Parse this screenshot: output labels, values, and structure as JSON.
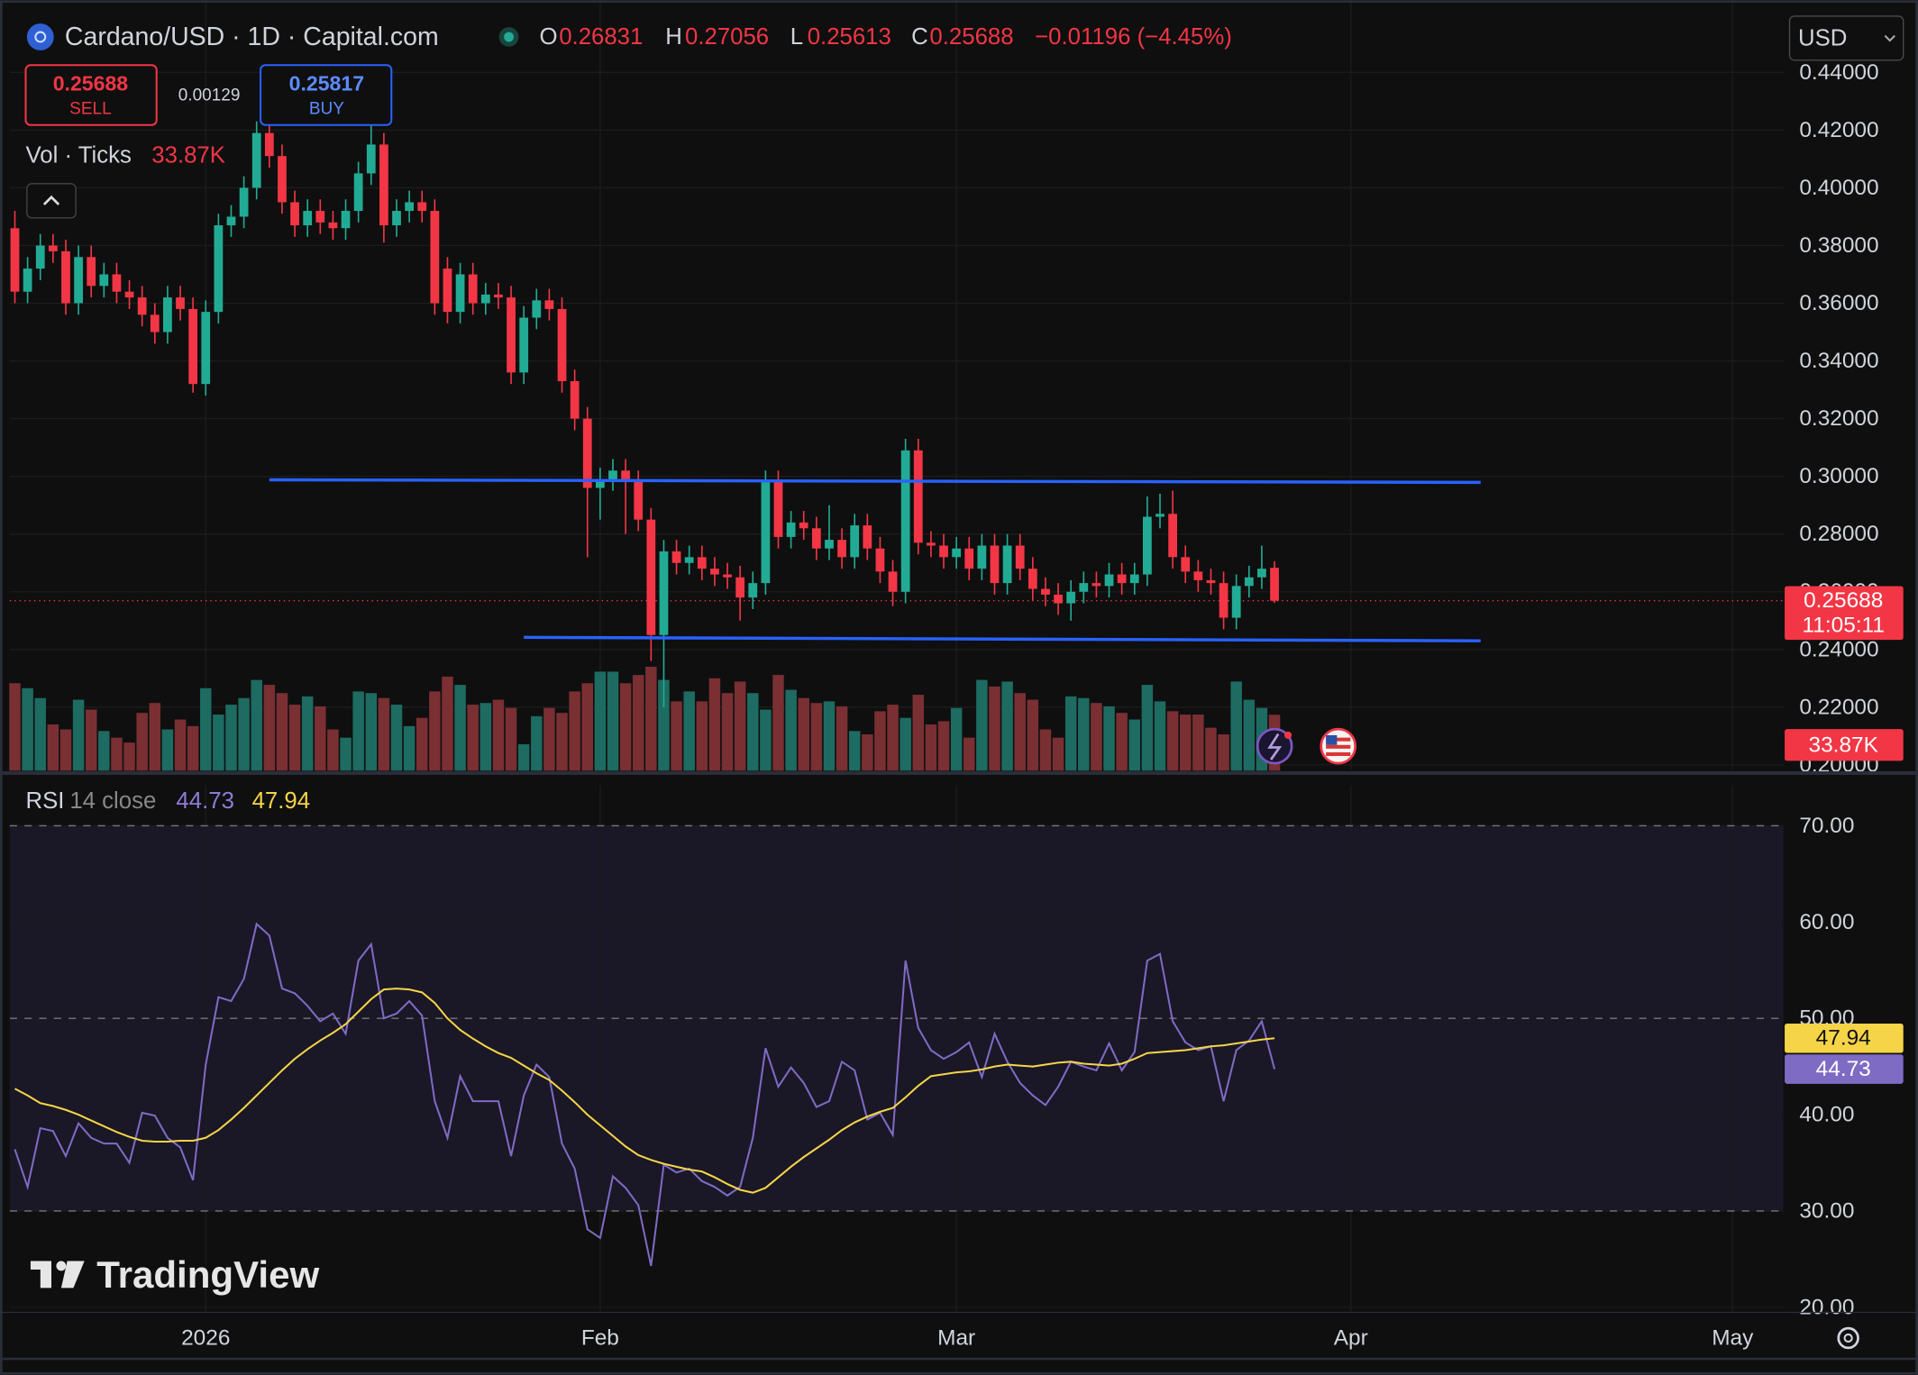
{
  "header": {
    "symbol": "Cardano/USD · 1D · Capital.com",
    "o_key": "O",
    "h_key": "H",
    "l_key": "L",
    "c_key": "C",
    "change": "−0.01196 (−4.45%)",
    "currency": "USD"
  },
  "trade": {
    "sell": "SELL",
    "spread": "0.00129",
    "buy_price": "0.25817",
    "buy": "BUY"
  },
  "branding": "TradingView",
  "chart_data": [
    {
      "type": "candlestick",
      "up_color": "#22ab94",
      "down_color": "#f23645",
      "grid": true,
      "countdown": "11:05:11",
      "x": [
        0,
        1,
        2,
        3,
        4,
        5,
        6,
        7,
        8,
        9,
        10,
        11,
        12,
        13,
        14,
        15,
        16,
        17,
        18,
        19,
        20,
        21,
        22,
        23,
        24,
        25,
        26,
        27,
        28,
        29,
        30,
        31,
        32,
        33,
        34,
        35,
        36,
        37,
        38,
        39,
        40,
        41,
        42,
        43,
        44,
        45,
        46,
        47,
        48,
        49,
        50,
        51,
        52,
        53,
        54,
        55,
        56,
        57,
        58,
        59,
        60,
        61,
        62,
        63,
        64,
        65,
        66,
        67,
        68,
        69,
        70,
        71,
        72,
        73,
        74,
        75,
        76,
        77,
        78,
        79,
        80,
        81,
        82,
        83,
        84,
        85,
        86,
        87,
        88,
        89,
        90,
        91,
        92,
        93,
        94,
        95,
        96,
        97,
        98,
        99
      ],
      "open": [
        0.386,
        0.364,
        0.372,
        0.38,
        0.378,
        0.36,
        0.376,
        0.366,
        0.37,
        0.364,
        0.362,
        0.356,
        0.35,
        0.362,
        0.358,
        0.332,
        0.357,
        0.387,
        0.39,
        0.4,
        0.419,
        0.411,
        0.395,
        0.387,
        0.392,
        0.388,
        0.386,
        0.392,
        0.405,
        0.415,
        0.387,
        0.392,
        0.395,
        0.392,
        0.372,
        0.357,
        0.37,
        0.36,
        0.363,
        0.362,
        0.336,
        0.355,
        0.361,
        0.358,
        0.333,
        0.32,
        0.296,
        0.299,
        0.302,
        0.298,
        0.285,
        0.245,
        0.274,
        0.27,
        0.272,
        0.268,
        0.266,
        0.265,
        0.258,
        0.263,
        0.298,
        0.279,
        0.284,
        0.282,
        0.275,
        0.278,
        0.272,
        0.283,
        0.275,
        0.267,
        0.26,
        0.309,
        0.277,
        0.276,
        0.272,
        0.275,
        0.268,
        0.276,
        0.263,
        0.276,
        0.268,
        0.261,
        0.259,
        0.256,
        0.26,
        0.263,
        0.262,
        0.266,
        0.263,
        0.266,
        0.286,
        0.287,
        0.272,
        0.267,
        0.264,
        0.263,
        0.251,
        0.262,
        0.265,
        0.26831
      ],
      "high": [
        0.392,
        0.376,
        0.384,
        0.384,
        0.382,
        0.38,
        0.38,
        0.374,
        0.374,
        0.368,
        0.366,
        0.36,
        0.366,
        0.366,
        0.362,
        0.361,
        0.391,
        0.394,
        0.404,
        0.423,
        0.423,
        0.415,
        0.399,
        0.396,
        0.396,
        0.392,
        0.396,
        0.409,
        0.423,
        0.419,
        0.396,
        0.399,
        0.399,
        0.396,
        0.376,
        0.374,
        0.374,
        0.367,
        0.367,
        0.366,
        0.359,
        0.365,
        0.365,
        0.362,
        0.337,
        0.324,
        0.303,
        0.306,
        0.306,
        0.302,
        0.289,
        0.278,
        0.278,
        0.276,
        0.276,
        0.272,
        0.27,
        0.269,
        0.267,
        0.302,
        0.302,
        0.288,
        0.288,
        0.286,
        0.29,
        0.282,
        0.287,
        0.287,
        0.279,
        0.271,
        0.313,
        0.313,
        0.281,
        0.28,
        0.279,
        0.279,
        0.28,
        0.28,
        0.28,
        0.28,
        0.272,
        0.265,
        0.263,
        0.264,
        0.267,
        0.267,
        0.27,
        0.27,
        0.27,
        0.293,
        0.294,
        0.295,
        0.276,
        0.271,
        0.268,
        0.267,
        0.266,
        0.269,
        0.276,
        0.27056
      ],
      "low": [
        0.36,
        0.36,
        0.368,
        0.374,
        0.356,
        0.356,
        0.362,
        0.362,
        0.36,
        0.358,
        0.352,
        0.346,
        0.346,
        0.354,
        0.329,
        0.328,
        0.353,
        0.383,
        0.386,
        0.396,
        0.407,
        0.391,
        0.383,
        0.383,
        0.384,
        0.382,
        0.382,
        0.388,
        0.401,
        0.381,
        0.383,
        0.388,
        0.388,
        0.356,
        0.353,
        0.353,
        0.356,
        0.356,
        0.358,
        0.332,
        0.332,
        0.351,
        0.354,
        0.329,
        0.316,
        0.272,
        0.285,
        0.295,
        0.28,
        0.281,
        0.236,
        0.22,
        0.266,
        0.266,
        0.264,
        0.262,
        0.261,
        0.25,
        0.254,
        0.259,
        0.275,
        0.275,
        0.278,
        0.271,
        0.271,
        0.268,
        0.268,
        0.271,
        0.263,
        0.255,
        0.256,
        0.273,
        0.272,
        0.268,
        0.268,
        0.264,
        0.264,
        0.259,
        0.259,
        0.264,
        0.257,
        0.255,
        0.252,
        0.25,
        0.256,
        0.258,
        0.258,
        0.259,
        0.259,
        0.262,
        0.282,
        0.268,
        0.263,
        0.26,
        0.259,
        0.247,
        0.247,
        0.258,
        0.261,
        0.25613
      ],
      "close": [
        0.364,
        0.372,
        0.38,
        0.378,
        0.36,
        0.376,
        0.366,
        0.37,
        0.364,
        0.362,
        0.356,
        0.35,
        0.362,
        0.358,
        0.332,
        0.357,
        0.387,
        0.39,
        0.4,
        0.419,
        0.411,
        0.395,
        0.387,
        0.392,
        0.388,
        0.386,
        0.392,
        0.405,
        0.415,
        0.387,
        0.392,
        0.395,
        0.392,
        0.36,
        0.357,
        0.37,
        0.36,
        0.363,
        0.362,
        0.336,
        0.355,
        0.361,
        0.358,
        0.333,
        0.32,
        0.296,
        0.299,
        0.302,
        0.298,
        0.285,
        0.245,
        0.274,
        0.27,
        0.272,
        0.268,
        0.266,
        0.265,
        0.258,
        0.263,
        0.298,
        0.279,
        0.284,
        0.282,
        0.275,
        0.278,
        0.272,
        0.283,
        0.275,
        0.267,
        0.26,
        0.309,
        0.277,
        0.276,
        0.272,
        0.275,
        0.268,
        0.276,
        0.263,
        0.276,
        0.268,
        0.261,
        0.259,
        0.256,
        0.26,
        0.263,
        0.262,
        0.266,
        0.263,
        0.266,
        0.286,
        0.287,
        0.272,
        0.267,
        0.264,
        0.263,
        0.251,
        0.262,
        0.265,
        0.268,
        0.25688
      ],
      "xlim": [
        -0.4,
        139
      ],
      "xticks": [
        {
          "value": 15,
          "label": "2026"
        },
        {
          "value": 46,
          "label": "Feb"
        },
        {
          "value": 74,
          "label": "Mar"
        },
        {
          "value": 105,
          "label": "Apr"
        },
        {
          "value": 135,
          "label": "May"
        }
      ],
      "ylim": [
        0.198,
        0.465
      ],
      "yticks": [
        {
          "value": 0.2,
          "label": "0.20000"
        },
        {
          "value": 0.22,
          "label": "0.22000"
        },
        {
          "value": 0.24,
          "label": "0.24000"
        },
        {
          "value": 0.26,
          "label": "0.26000"
        },
        {
          "value": 0.28,
          "label": "0.28000"
        },
        {
          "value": 0.3,
          "label": "0.30000"
        },
        {
          "value": 0.32,
          "label": "0.32000"
        },
        {
          "value": 0.34,
          "label": "0.34000"
        },
        {
          "value": 0.36,
          "label": "0.36000"
        },
        {
          "value": 0.38,
          "label": "0.38000"
        },
        {
          "value": 0.4,
          "label": "0.40000"
        },
        {
          "value": 0.42,
          "label": "0.42000"
        },
        {
          "value": 0.44,
          "label": "0.44000"
        }
      ],
      "trendlines": [
        {
          "color": "#2962ff",
          "x": [
            20,
            115.2
          ],
          "y": [
            0.2988,
            0.2979
          ]
        },
        {
          "color": "#2962ff",
          "x": [
            40,
            115.2
          ],
          "y": [
            0.2442,
            0.243
          ]
        }
      ]
    },
    {
      "type": "bar",
      "title": "Vol · Ticks",
      "up_color": "#1d6b61",
      "down_color": "#7a2f33",
      "values": [
        53000,
        50000,
        44000,
        28000,
        25000,
        43000,
        37000,
        24000,
        20000,
        17000,
        35000,
        41000,
        25000,
        31000,
        27000,
        50000,
        34000,
        40000,
        44000,
        55000,
        52000,
        47000,
        40000,
        45000,
        39000,
        25000,
        20000,
        48000,
        47000,
        44000,
        40000,
        27000,
        32000,
        48000,
        57000,
        52000,
        40000,
        41000,
        43000,
        38000,
        16000,
        33000,
        38000,
        35000,
        48000,
        53000,
        60000,
        60000,
        53000,
        58000,
        63000,
        55000,
        42000,
        48000,
        42000,
        56000,
        47000,
        54000,
        47000,
        37000,
        58000,
        49000,
        44000,
        41000,
        42000,
        39000,
        24000,
        22000,
        36000,
        40000,
        32000,
        46000,
        28000,
        30000,
        38000,
        20000,
        55000,
        51000,
        54000,
        47000,
        43000,
        25000,
        20000,
        45000,
        44000,
        41000,
        39000,
        35000,
        31000,
        52000,
        42000,
        36000,
        34000,
        34000,
        26000,
        22000,
        54000,
        43000,
        38000,
        33870
      ],
      "value_labels": [
        null,
        null,
        null,
        null,
        null,
        null,
        null,
        null,
        null,
        null,
        null,
        null,
        null,
        null,
        null,
        null,
        null,
        null,
        null,
        null,
        null,
        null,
        null,
        null,
        null,
        null,
        null,
        null,
        null,
        null,
        null,
        null,
        null,
        null,
        null,
        null,
        null,
        null,
        null,
        null,
        null,
        null,
        null,
        null,
        null,
        null,
        null,
        null,
        null,
        null,
        null,
        null,
        null,
        null,
        null,
        null,
        null,
        null,
        null,
        null,
        null,
        null,
        null,
        null,
        null,
        null,
        null,
        null,
        null,
        null,
        null,
        null,
        null,
        null,
        null,
        null,
        null,
        null,
        null,
        null,
        null,
        null,
        null,
        null,
        null,
        null,
        null,
        null,
        null,
        null,
        null,
        null,
        null,
        null,
        null,
        null,
        null,
        null,
        null,
        "33.87K"
      ]
    },
    {
      "type": "line",
      "title": "RSI",
      "subtitle": "14 close",
      "band": [
        30,
        70
      ],
      "levels": [
        30,
        50,
        70
      ],
      "band_color": "#1a1727",
      "ylim": [
        19.6,
        74.2
      ],
      "yticks": [
        {
          "value": 20,
          "label": "20.00"
        },
        {
          "value": 30,
          "label": "30.00"
        },
        {
          "value": 40,
          "label": "40.00"
        },
        {
          "value": 50,
          "label": "50.00"
        },
        {
          "value": 60,
          "label": "60.00"
        },
        {
          "value": 70,
          "label": "70.00"
        }
      ],
      "series": [
        {
          "color": "#7e6bc4",
          "values": [
            36.4,
            32.5,
            38.6,
            38.3,
            35.7,
            39.1,
            37.6,
            37.0,
            37.0,
            35.0,
            40.2,
            39.9,
            37.6,
            36.6,
            33.2,
            45.2,
            52.2,
            51.8,
            54.1,
            59.8,
            58.6,
            53.1,
            52.6,
            51.3,
            49.7,
            50.5,
            48.4,
            56.0,
            57.7,
            50.0,
            50.5,
            51.8,
            50.3,
            41.4,
            37.6,
            44.0,
            41.4,
            41.4,
            41.4,
            35.7,
            42.0,
            45.2,
            43.9,
            37.0,
            34.4,
            28.1,
            27.2,
            33.6,
            32.4,
            30.6,
            24.3,
            34.8,
            34.0,
            34.4,
            33.1,
            32.5,
            31.6,
            32.5,
            37.6,
            46.9,
            42.9,
            44.9,
            43.3,
            40.8,
            41.4,
            45.5,
            44.6,
            39.5,
            40.2,
            37.9,
            56.0,
            49.0,
            46.7,
            45.8,
            46.5,
            47.5,
            43.9,
            48.4,
            45.5,
            43.3,
            42.0,
            41.0,
            42.9,
            45.5,
            45.0,
            44.6,
            47.4,
            44.6,
            46.5,
            56.0,
            56.7,
            49.7,
            47.5,
            46.7,
            47.1,
            41.4,
            46.7,
            47.7,
            49.7,
            44.73
          ]
        },
        {
          "color": "#f5d547",
          "values": [
            42.7,
            42.0,
            41.2,
            40.9,
            40.5,
            40.0,
            39.4,
            38.8,
            38.2,
            37.7,
            37.3,
            37.2,
            37.2,
            37.3,
            37.3,
            37.6,
            38.4,
            39.5,
            40.7,
            42.0,
            43.3,
            44.6,
            45.8,
            46.8,
            47.7,
            48.5,
            49.4,
            50.7,
            52.0,
            53.0,
            53.1,
            53.0,
            52.7,
            51.6,
            50.0,
            48.8,
            47.9,
            47.1,
            46.4,
            45.9,
            45.1,
            44.3,
            43.6,
            42.5,
            41.3,
            40.0,
            38.9,
            37.8,
            36.7,
            35.8,
            35.3,
            34.9,
            34.6,
            34.3,
            34.1,
            33.5,
            32.8,
            32.2,
            31.9,
            32.4,
            33.5,
            34.6,
            35.6,
            36.5,
            37.4,
            38.4,
            39.2,
            39.8,
            40.3,
            40.7,
            41.8,
            43.0,
            44.0,
            44.2,
            44.4,
            44.5,
            44.7,
            45.0,
            45.2,
            45.1,
            45.0,
            45.2,
            45.4,
            45.5,
            45.3,
            45.2,
            45.1,
            45.3,
            45.8,
            46.4,
            46.5,
            46.6,
            46.7,
            46.9,
            47.1,
            47.2,
            47.4,
            47.6,
            47.8,
            47.94
          ]
        }
      ]
    }
  ]
}
